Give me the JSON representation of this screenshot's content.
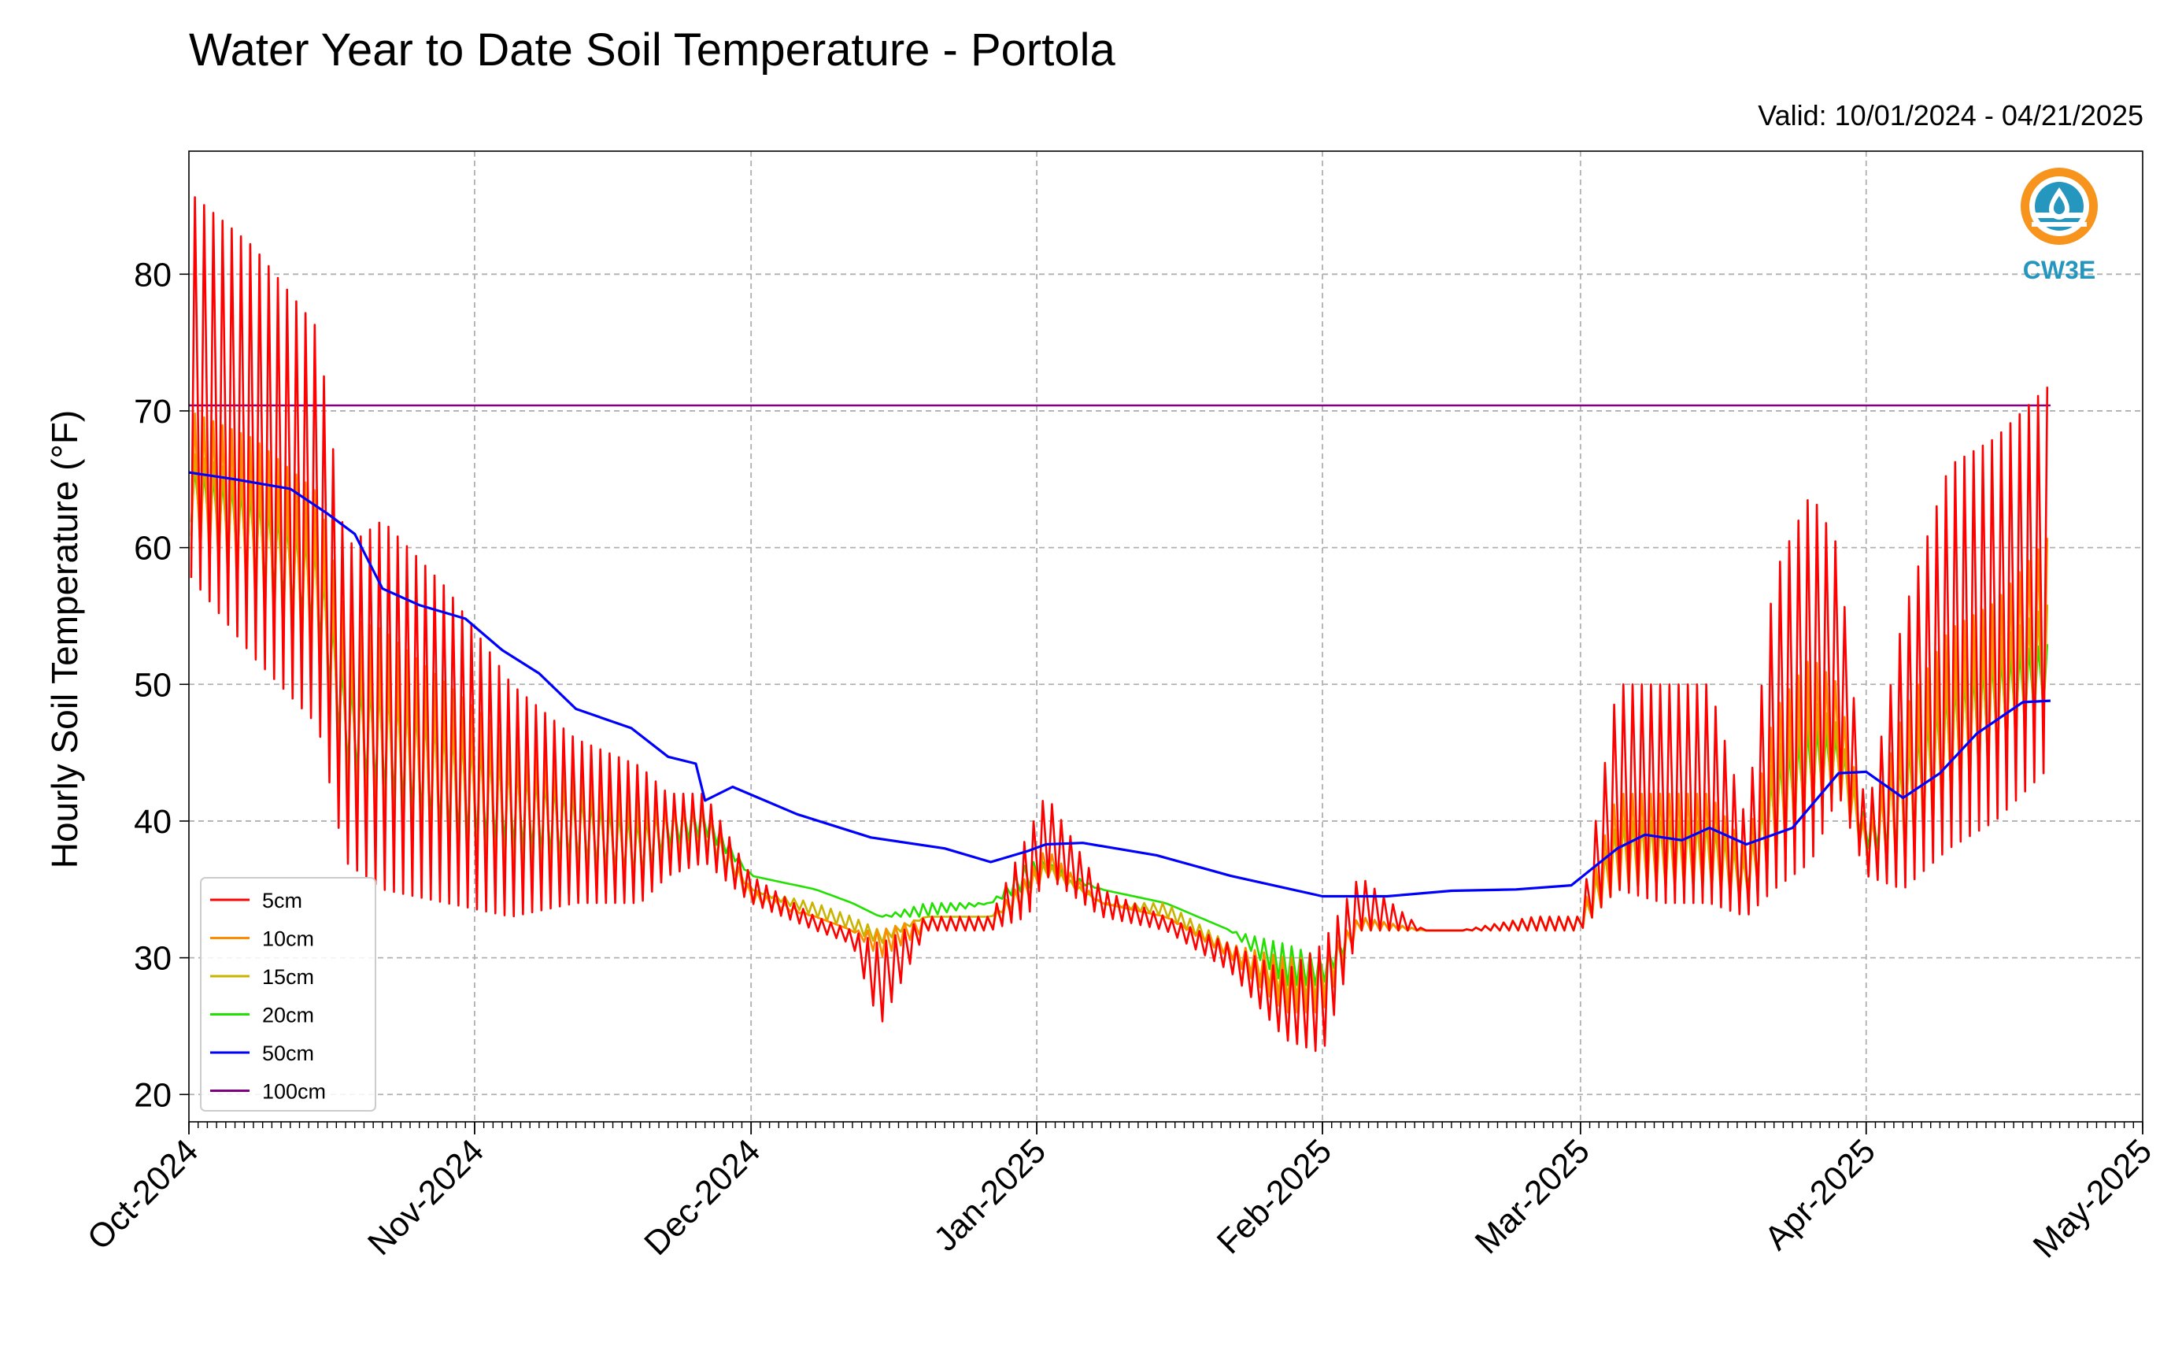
{
  "chart_data": {
    "type": "line",
    "title": "Water Year to Date Soil Temperature - Portola",
    "valid_label": "Valid: 10/01/2024 - 04/21/2025",
    "ylabel": "Hourly Soil Temperature (°F)",
    "xlabel": "",
    "xlim": [
      "2024-10-01",
      "2025-05-01"
    ],
    "ylim": [
      18,
      89
    ],
    "x_ticks": [
      {
        "date": "2024-10-01",
        "label": "Oct-2024"
      },
      {
        "date": "2024-11-01",
        "label": "Nov-2024"
      },
      {
        "date": "2024-12-01",
        "label": "Dec-2024"
      },
      {
        "date": "2025-01-01",
        "label": "Jan-2025"
      },
      {
        "date": "2025-02-01",
        "label": "Feb-2025"
      },
      {
        "date": "2025-03-01",
        "label": "Mar-2025"
      },
      {
        "date": "2025-04-01",
        "label": "Apr-2025"
      },
      {
        "date": "2025-05-01",
        "label": "May-2025"
      }
    ],
    "y_ticks": [
      20,
      30,
      40,
      50,
      60,
      70,
      80
    ],
    "grid": true,
    "legend_position": "lower-left",
    "series": [
      {
        "name": "5cm",
        "color": "#ff0000",
        "x": [
          "2024-10-01",
          "2024-10-08",
          "2024-10-15",
          "2024-10-18",
          "2024-10-22",
          "2024-10-29",
          "2024-11-05",
          "2024-11-12",
          "2024-11-19",
          "2024-11-22",
          "2024-11-26",
          "2024-12-01",
          "2024-12-08",
          "2024-12-12",
          "2024-12-15",
          "2024-12-20",
          "2024-12-27",
          "2024-12-31",
          "2025-01-02",
          "2025-01-08",
          "2025-01-15",
          "2025-01-22",
          "2025-01-28",
          "2025-02-01",
          "2025-02-05",
          "2025-02-12",
          "2025-02-16",
          "2025-02-24",
          "2025-03-01",
          "2025-03-05",
          "2025-03-10",
          "2025-03-15",
          "2025-03-19",
          "2025-03-22",
          "2025-03-26",
          "2025-03-29",
          "2025-04-01",
          "2025-04-05",
          "2025-04-10",
          "2025-04-15",
          "2025-04-21"
        ],
        "lo": [
          58,
          52,
          47,
          37,
          35,
          34,
          33,
          34,
          34,
          36,
          37,
          34,
          32,
          31,
          25,
          32,
          32,
          33,
          36,
          33,
          32,
          29,
          24,
          23,
          32,
          32,
          32,
          32,
          32,
          35,
          34,
          34,
          33,
          35,
          37,
          42,
          36,
          35,
          38,
          40,
          44
        ],
        "hi": [
          86,
          82,
          76,
          60,
          62,
          57,
          50,
          46,
          44,
          42,
          42,
          36,
          33,
          32,
          31,
          33,
          33,
          39,
          42,
          35,
          33,
          31,
          29,
          31,
          36,
          32,
          32,
          33,
          33,
          50,
          50,
          50,
          40,
          58,
          64,
          60,
          40,
          55,
          66,
          68,
          72
        ]
      },
      {
        "name": "10cm",
        "color": "#ff8c00",
        "x": [
          "2024-10-01",
          "2024-10-08",
          "2024-10-15",
          "2024-10-18",
          "2024-10-22",
          "2024-10-29",
          "2024-11-05",
          "2024-11-12",
          "2024-11-19",
          "2024-11-22",
          "2024-11-26",
          "2024-12-01",
          "2024-12-08",
          "2024-12-12",
          "2024-12-15",
          "2024-12-20",
          "2024-12-27",
          "2024-12-31",
          "2025-01-02",
          "2025-01-08",
          "2025-01-15",
          "2025-01-22",
          "2025-01-28",
          "2025-02-01",
          "2025-02-05",
          "2025-02-12",
          "2025-02-16",
          "2025-02-24",
          "2025-03-01",
          "2025-03-05",
          "2025-03-10",
          "2025-03-15",
          "2025-03-19",
          "2025-03-22",
          "2025-03-26",
          "2025-03-29",
          "2025-04-01",
          "2025-04-05",
          "2025-04-10",
          "2025-04-15",
          "2025-04-21"
        ],
        "lo": [
          60,
          55,
          50,
          40,
          38,
          36,
          35,
          35,
          35,
          37,
          38,
          34,
          33,
          32,
          30,
          32,
          32,
          34,
          36,
          34,
          33,
          30,
          26,
          26,
          32,
          32,
          32,
          32,
          32,
          35,
          35,
          35,
          34,
          36,
          39,
          42,
          37,
          36,
          40,
          43,
          47
        ],
        "hi": [
          70,
          68,
          64,
          55,
          54,
          50,
          46,
          44,
          42,
          41,
          41,
          35,
          33,
          32,
          32,
          33,
          33,
          36,
          38,
          34,
          33,
          31,
          30,
          30,
          33,
          32,
          32,
          33,
          33,
          42,
          42,
          42,
          38,
          48,
          52,
          50,
          39,
          48,
          54,
          56,
          61
        ]
      },
      {
        "name": "15cm",
        "color": "#c8b400",
        "x": [
          "2024-10-01",
          "2024-10-08",
          "2024-10-15",
          "2024-10-18",
          "2024-10-22",
          "2024-10-29",
          "2024-11-05",
          "2024-11-12",
          "2024-11-19",
          "2024-11-22",
          "2024-11-26",
          "2024-12-01",
          "2024-12-08",
          "2024-12-12",
          "2024-12-15",
          "2024-12-20",
          "2024-12-27",
          "2024-12-31",
          "2025-01-02",
          "2025-01-08",
          "2025-01-15",
          "2025-01-22",
          "2025-01-28",
          "2025-02-01",
          "2025-02-05",
          "2025-02-12",
          "2025-02-16",
          "2025-02-24",
          "2025-03-01",
          "2025-03-05",
          "2025-03-10",
          "2025-03-15",
          "2025-03-19",
          "2025-03-22",
          "2025-03-26",
          "2025-03-29",
          "2025-04-01",
          "2025-04-05",
          "2025-04-10",
          "2025-04-15",
          "2025-04-21"
        ],
        "lo": [
          61,
          57,
          52,
          42,
          40,
          37,
          36,
          36,
          35,
          37,
          38,
          35,
          33,
          32,
          31,
          33,
          33,
          34,
          36,
          34,
          33,
          30,
          27,
          27,
          32,
          32,
          32,
          32,
          32,
          35,
          35,
          35,
          34,
          37,
          40,
          42,
          37,
          37,
          41,
          44,
          48
        ],
        "hi": [
          67,
          65,
          61,
          52,
          51,
          48,
          45,
          43,
          41,
          41,
          41,
          35,
          34,
          33,
          32,
          33,
          33,
          36,
          37,
          34,
          34,
          31,
          30,
          30,
          33,
          32,
          32,
          33,
          33,
          40,
          40,
          40,
          37,
          45,
          49,
          47,
          39,
          46,
          51,
          53,
          56
        ]
      },
      {
        "name": "20cm",
        "color": "#22e000",
        "x": [
          "2024-10-01",
          "2024-10-08",
          "2024-10-15",
          "2024-10-18",
          "2024-10-22",
          "2024-10-29",
          "2024-11-05",
          "2024-11-12",
          "2024-11-19",
          "2024-11-22",
          "2024-11-26",
          "2024-12-01",
          "2024-12-08",
          "2024-12-12",
          "2024-12-15",
          "2024-12-20",
          "2024-12-27",
          "2024-12-31",
          "2025-01-02",
          "2025-01-08",
          "2025-01-15",
          "2025-01-22",
          "2025-01-28",
          "2025-02-01",
          "2025-02-05",
          "2025-02-12",
          "2025-02-16",
          "2025-02-24",
          "2025-03-01",
          "2025-03-05",
          "2025-03-10",
          "2025-03-15",
          "2025-03-19",
          "2025-03-22",
          "2025-03-26",
          "2025-03-29",
          "2025-04-01",
          "2025-04-05",
          "2025-04-10",
          "2025-04-15",
          "2025-04-21"
        ],
        "lo": [
          62,
          58,
          54,
          44,
          42,
          39,
          38,
          37,
          36,
          38,
          39,
          36,
          35,
          34,
          33,
          33,
          34,
          35,
          36,
          35,
          34,
          32,
          28,
          28,
          32,
          32,
          32,
          32,
          32,
          36,
          36,
          36,
          35,
          38,
          41,
          43,
          38,
          38,
          42,
          45,
          49
        ],
        "hi": [
          66,
          64,
          60,
          50,
          50,
          47,
          44,
          42,
          40,
          41,
          41,
          36,
          35,
          34,
          33,
          34,
          34,
          37,
          37,
          35,
          34,
          32,
          31,
          30,
          33,
          32,
          32,
          33,
          33,
          40,
          40,
          40,
          37,
          44,
          47,
          46,
          40,
          45,
          50,
          52,
          53
        ]
      },
      {
        "name": "50cm",
        "color": "#0000ff",
        "x": [
          "2024-10-01",
          "2024-10-06",
          "2024-10-12",
          "2024-10-16",
          "2024-10-19",
          "2024-10-22",
          "2024-10-26",
          "2024-10-31",
          "2024-11-04",
          "2024-11-08",
          "2024-11-12",
          "2024-11-18",
          "2024-11-22",
          "2024-11-25",
          "2024-11-26",
          "2024-11-29",
          "2024-12-06",
          "2024-12-14",
          "2024-12-22",
          "2024-12-27",
          "2024-12-31",
          "2025-01-02",
          "2025-01-06",
          "2025-01-14",
          "2025-01-22",
          "2025-02-01",
          "2025-02-08",
          "2025-02-15",
          "2025-02-22",
          "2025-02-28",
          "2025-03-05",
          "2025-03-08",
          "2025-03-12",
          "2025-03-15",
          "2025-03-19",
          "2025-03-24",
          "2025-03-29",
          "2025-04-01",
          "2025-04-05",
          "2025-04-09",
          "2025-04-13",
          "2025-04-18",
          "2025-04-21"
        ],
        "y": [
          65.5,
          65,
          64.3,
          62.5,
          61,
          57,
          55.8,
          54.8,
          52.5,
          50.8,
          48.2,
          46.8,
          44.7,
          44.2,
          41.5,
          42.5,
          40.5,
          38.8,
          38,
          37,
          37.8,
          38.3,
          38.4,
          37.5,
          36,
          34.5,
          34.5,
          34.9,
          35,
          35.3,
          38,
          39,
          38.6,
          39.5,
          38.3,
          39.5,
          43.5,
          43.6,
          41.7,
          43.5,
          46.4,
          48.7,
          48.8
        ]
      },
      {
        "name": "100cm",
        "color": "#800080",
        "x": [
          "2024-10-01",
          "2025-04-21"
        ],
        "y": [
          70.4,
          70.4
        ]
      }
    ]
  },
  "logo": {
    "text": "CW3E",
    "primary_color": "#2596be",
    "accent_color": "#f7941d"
  }
}
